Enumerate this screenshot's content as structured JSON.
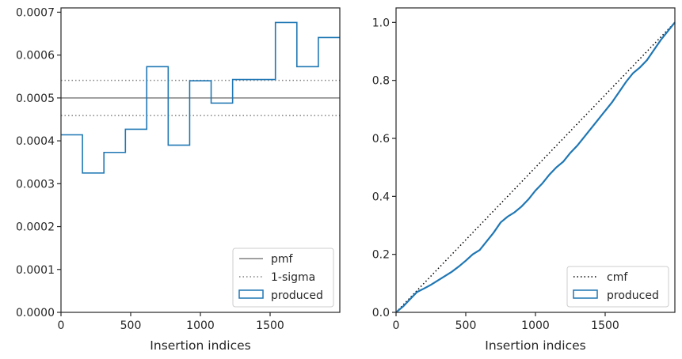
{
  "chart_data": [
    {
      "type": "step-histogram",
      "xlabel": "Insertion indices",
      "ylabel": "",
      "xlim": [
        0,
        2000
      ],
      "ylim": [
        0,
        0.00071
      ],
      "xticks": [
        0,
        500,
        1000,
        1500
      ],
      "xtick_labels": [
        "0",
        "500",
        "1000",
        "1500"
      ],
      "yticks": [
        0,
        0.0001,
        0.0002,
        0.0003,
        0.0004,
        0.0005,
        0.0006,
        0.0007
      ],
      "ytick_labels": [
        "0.0000",
        "0.0001",
        "0.0002",
        "0.0003",
        "0.0004",
        "0.0005",
        "0.0006",
        "0.0007"
      ],
      "bin_edges": [
        0,
        154,
        308,
        462,
        615,
        769,
        923,
        1077,
        1231,
        1385,
        1538,
        1692,
        1846,
        2000
      ],
      "series": [
        {
          "name": "produced",
          "color": "#1f77b4",
          "values": [
            0.000414,
            0.000325,
            0.000373,
            0.000427,
            0.000573,
            0.00039,
            0.00054,
            0.000488,
            0.000543,
            0.000543,
            0.000676,
            0.000573,
            0.000641
          ]
        }
      ],
      "reference_lines": [
        {
          "name": "pmf",
          "value": 0.0005,
          "style": "solid",
          "color": "#808080"
        },
        {
          "name": "1-sigma",
          "value": 0.000541,
          "style": "dotted",
          "color": "#808080"
        },
        {
          "name": "1-sigma",
          "value": 0.000459,
          "style": "dotted",
          "color": "#808080"
        }
      ],
      "legend": {
        "position": "lower-right",
        "entries": [
          {
            "label": "pmf",
            "marker": "line-solid",
            "color": "#808080"
          },
          {
            "label": "1-sigma",
            "marker": "line-dotted",
            "color": "#808080"
          },
          {
            "label": "produced",
            "marker": "patch",
            "color": "#1f77b4"
          }
        ]
      }
    },
    {
      "type": "line",
      "xlabel": "Insertion indices",
      "ylabel": "",
      "xlim": [
        0,
        2000
      ],
      "ylim": [
        0,
        1.05
      ],
      "xticks": [
        0,
        500,
        1000,
        1500
      ],
      "xtick_labels": [
        "0",
        "500",
        "1000",
        "1500"
      ],
      "yticks": [
        0,
        0.2,
        0.4,
        0.6,
        0.8,
        1.0
      ],
      "ytick_labels": [
        "0.0",
        "0.2",
        "0.4",
        "0.6",
        "0.8",
        "1.0"
      ],
      "series": [
        {
          "name": "cmf",
          "style": "dotted",
          "color": "#000000",
          "x": [
            0,
            2000
          ],
          "y": [
            0,
            1
          ]
        },
        {
          "name": "produced",
          "style": "solid",
          "color": "#1f77b4",
          "x": [
            0,
            50,
            100,
            150,
            200,
            250,
            300,
            350,
            400,
            450,
            500,
            550,
            600,
            650,
            700,
            750,
            800,
            850,
            900,
            950,
            1000,
            1050,
            1100,
            1150,
            1200,
            1250,
            1300,
            1350,
            1400,
            1450,
            1500,
            1550,
            1600,
            1650,
            1700,
            1750,
            1800,
            1850,
            1900,
            1950,
            2000
          ],
          "y": [
            0,
            0.02,
            0.045,
            0.07,
            0.082,
            0.095,
            0.11,
            0.125,
            0.14,
            0.158,
            0.178,
            0.2,
            0.215,
            0.245,
            0.275,
            0.31,
            0.33,
            0.345,
            0.365,
            0.39,
            0.42,
            0.445,
            0.475,
            0.5,
            0.52,
            0.55,
            0.575,
            0.605,
            0.635,
            0.665,
            0.695,
            0.725,
            0.76,
            0.795,
            0.825,
            0.845,
            0.87,
            0.905,
            0.94,
            0.97,
            1.0
          ]
        }
      ],
      "legend": {
        "position": "lower-right",
        "entries": [
          {
            "label": "cmf",
            "marker": "line-dotted",
            "color": "#000000"
          },
          {
            "label": "produced",
            "marker": "patch",
            "color": "#1f77b4"
          }
        ]
      }
    }
  ]
}
